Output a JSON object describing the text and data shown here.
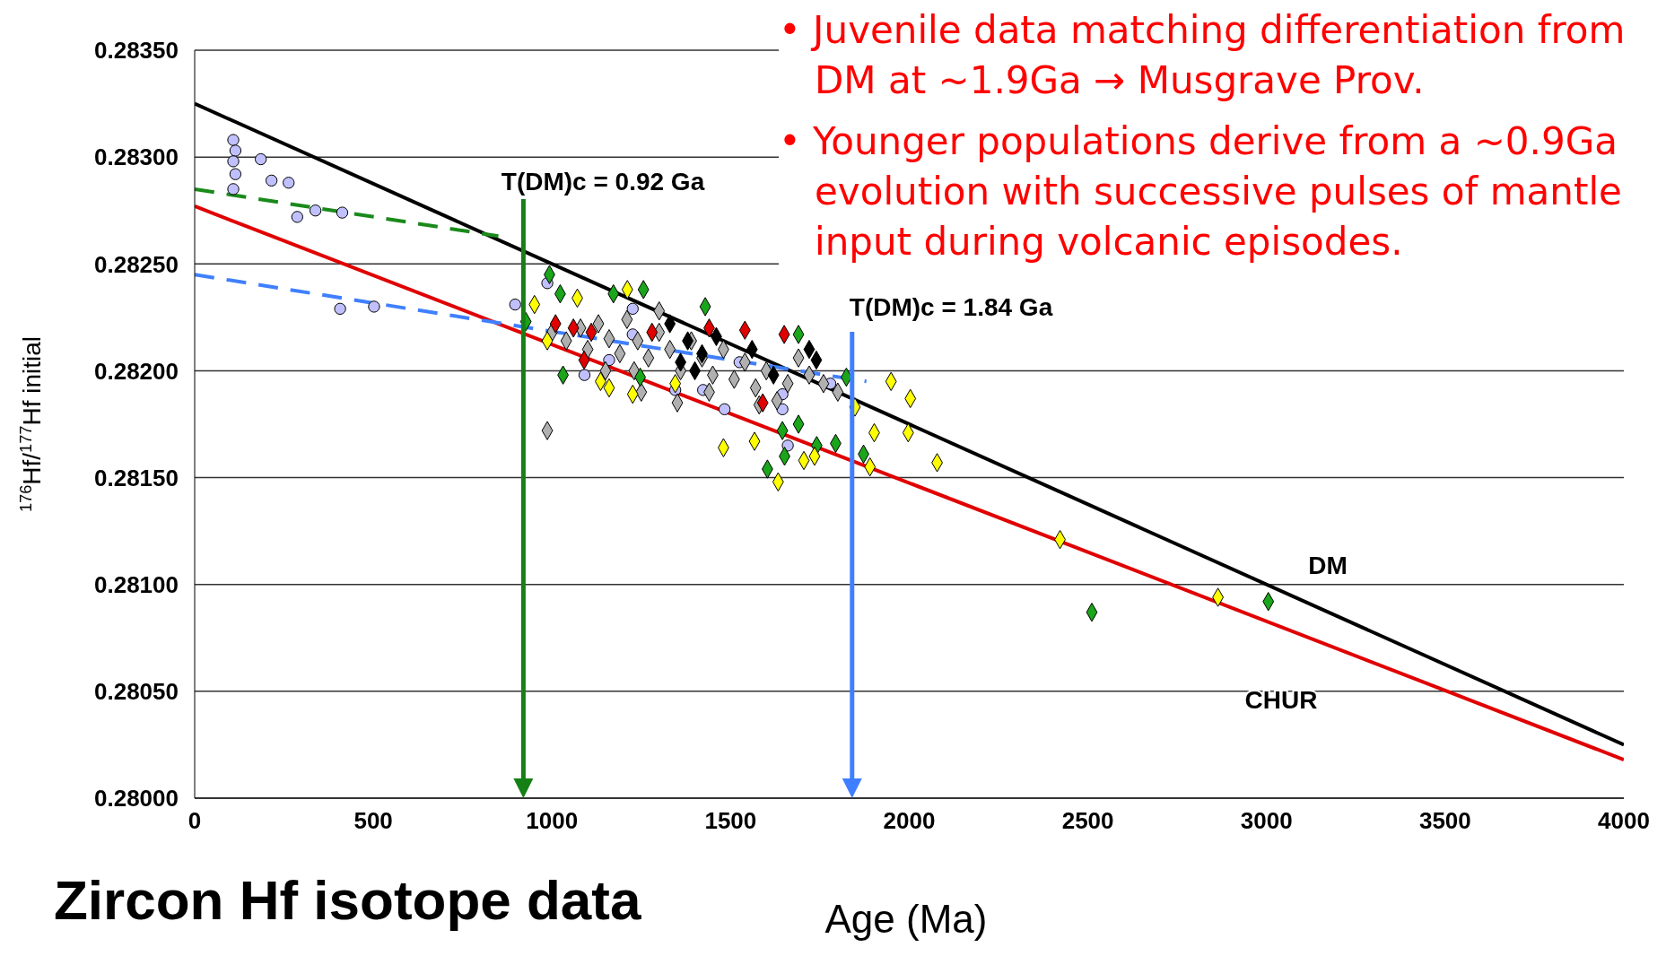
{
  "chart_data": {
    "type": "scatter",
    "title": "Zircon Hf isotope data",
    "xlabel": "Age (Ma)",
    "ylabel": "$^{176}$Hf/$^{177}$Hf initial",
    "xlim": [
      0,
      4000
    ],
    "xticks": [
      0,
      500,
      1000,
      1500,
      2000,
      2500,
      3000,
      3500,
      4000
    ],
    "ylim": [
      0.28,
      0.2835
    ],
    "yticks": [
      {
        "value": 0.28,
        "label": "0.28000"
      },
      {
        "value": 0.2805,
        "label": "0.28050"
      },
      {
        "value": 0.281,
        "label": "0.28100"
      },
      {
        "value": 0.2815,
        "label": "0.28150"
      },
      {
        "value": 0.282,
        "label": "0.28200"
      },
      {
        "value": 0.2825,
        "label": "0.28250"
      },
      {
        "value": 0.283,
        "label": "0.28300"
      },
      {
        "value": 0.2835,
        "label": "0.28350"
      }
    ],
    "grid": "y",
    "legend": false,
    "series": [
      {
        "type": "line",
        "color": "#000000",
        "marker": "none",
        "line_style": "solid",
        "x": [
          0,
          4000
        ],
        "values": [
          0.28325,
          0.28025
        ]
      },
      {
        "type": "line",
        "color": "#e00000",
        "marker": "none",
        "line_style": "solid",
        "x": [
          0,
          4000
        ],
        "values": [
          0.28277,
          0.28018
        ]
      },
      {
        "color": "#c0c0ff",
        "marker": "circle",
        "x": [
          108,
          114,
          108,
          114,
          108,
          185,
          215,
          263,
          287,
          338,
          413,
          407,
          502,
          897,
          987,
          1091,
          1160,
          1226,
          1345,
          1423,
          1483,
          1525,
          1645,
          1660,
          1645,
          1779,
          1226
        ],
        "values": [
          0.28308,
          0.28303,
          0.28298,
          0.28292,
          0.28285,
          0.28299,
          0.28289,
          0.28288,
          0.28272,
          0.28275,
          0.28274,
          0.28229,
          0.2823,
          0.28231,
          0.28241,
          0.28198,
          0.28205,
          0.28217,
          0.28191,
          0.28191,
          0.28182,
          0.28204,
          0.28189,
          0.28165,
          0.28182,
          0.28194,
          0.28229
        ]
      },
      {
        "color": "#b0b0b0",
        "marker": "diamond",
        "x": [
          1000,
          1040,
          1080,
          1100,
          1130,
          1160,
          1190,
          1210,
          1240,
          1270,
          1300,
          1330,
          1360,
          1390,
          1420,
          1450,
          1480,
          1510,
          1540,
          1570,
          1600,
          1630,
          1660,
          1690,
          1720,
          1760,
          1800,
          1230,
          1150,
          1440,
          987,
          1351,
          1300,
          1250,
          1580
        ],
        "values": [
          0.28218,
          0.28214,
          0.2822,
          0.2821,
          0.28222,
          0.28215,
          0.28208,
          0.28224,
          0.28214,
          0.28206,
          0.28218,
          0.2821,
          0.282,
          0.28214,
          0.28206,
          0.28198,
          0.2821,
          0.28196,
          0.28204,
          0.28192,
          0.282,
          0.28186,
          0.28194,
          0.28206,
          0.28198,
          0.28194,
          0.2819,
          0.282,
          0.282,
          0.2819,
          0.28172,
          0.28185,
          0.28228,
          0.2819,
          0.28184
        ]
      },
      {
        "color": "#000000",
        "marker": "diamond",
        "x": [
          1330,
          1380,
          1420,
          1460,
          1400,
          1560,
          1620,
          1740,
          1720,
          1360
        ],
        "values": [
          0.28222,
          0.28214,
          0.28208,
          0.28216,
          0.282,
          0.2821,
          0.28198,
          0.28205,
          0.2821,
          0.28204
        ]
      },
      {
        "color": "#e00000",
        "marker": "diamond",
        "x": [
          1010,
          1060,
          1110,
          1280,
          1440,
          1540,
          1650,
          1590,
          1090
        ],
        "values": [
          0.28222,
          0.2822,
          0.28218,
          0.28218,
          0.2822,
          0.28219,
          0.28217,
          0.28185,
          0.28205
        ]
      },
      {
        "color": "#1aa51a",
        "marker": "diamond",
        "x": [
          993,
          1023,
          927,
          1031,
          1172,
          1256,
          1429,
          1247,
          1603,
          1651,
          1690,
          1645,
          1690,
          1741,
          1794,
          1824,
          1872,
          2511,
          3005
        ],
        "values": [
          0.28245,
          0.28236,
          0.28223,
          0.28198,
          0.28236,
          0.28238,
          0.2823,
          0.28197,
          0.28154,
          0.2816,
          0.28217,
          0.28172,
          0.28175,
          0.28165,
          0.28166,
          0.28197,
          0.28161,
          0.28087,
          0.28092
        ]
      },
      {
        "color": "#ffff00",
        "marker": "diamond",
        "x": [
          951,
          987,
          1136,
          1160,
          1226,
          1211,
          1345,
          1480,
          1567,
          1633,
          1705,
          1735,
          1848,
          1949,
          2003,
          1902,
          1997,
          1890,
          2078,
          2422,
          2864,
          1071
        ],
        "values": [
          0.28231,
          0.28214,
          0.28195,
          0.28192,
          0.28189,
          0.28238,
          0.28194,
          0.28164,
          0.28167,
          0.28148,
          0.28158,
          0.2816,
          0.28183,
          0.28195,
          0.28187,
          0.28171,
          0.28171,
          0.28155,
          0.28157,
          0.28121,
          0.28094,
          0.28234
        ]
      },
      {
        "type": "line",
        "color": "#1a8a1a",
        "marker": "none",
        "line_style": "dashed",
        "x": [
          0,
          850
        ],
        "values": [
          0.28285,
          0.28263
        ]
      },
      {
        "type": "line",
        "color": "#4080ff",
        "marker": "none",
        "line_style": "dashed",
        "x": [
          0,
          1880
        ],
        "values": [
          0.28245,
          0.28195
        ]
      }
    ],
    "annotations": [
      "• Juvenile data matching differentiation from DM at ~1.9Ga → Musgrave Prov.",
      "• Younger populations derive from a ~0.9Ga evolution with successive pulses of mantle input during volcanic episodes.",
      "T(DM)c = 0.92 Ga",
      "T(DM)c = 1.84 Ga",
      "DM",
      "CHUR"
    ]
  }
}
